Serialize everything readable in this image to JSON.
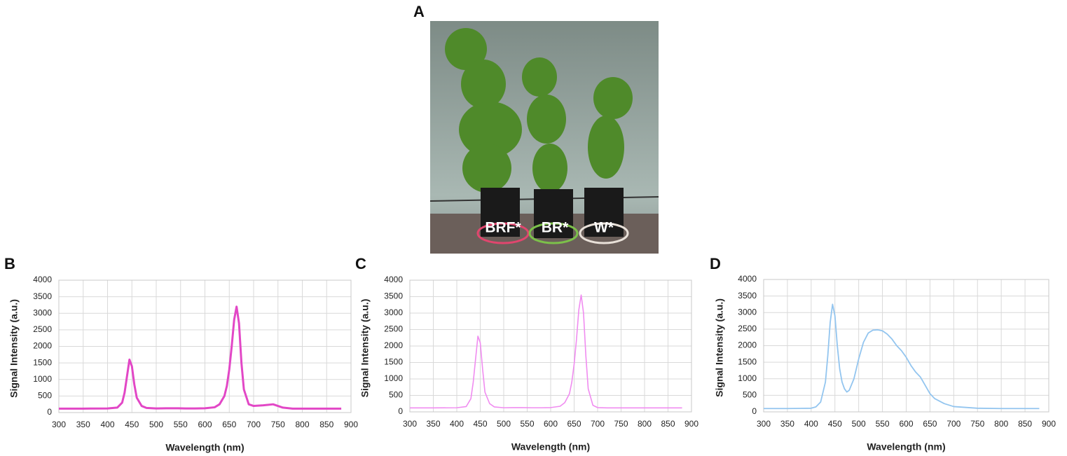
{
  "photo": {
    "label": "A",
    "tags": [
      "BRF*",
      "BR*",
      "W*"
    ]
  },
  "chart_data": [
    {
      "type": "line",
      "label": "B",
      "xlabel": "Wavelength (nm)",
      "ylabel": "Signal Intensity (a.u.)",
      "xlim": [
        300,
        900
      ],
      "xticks": [
        300,
        350,
        400,
        450,
        500,
        550,
        600,
        650,
        700,
        750,
        800,
        850,
        900
      ],
      "ylim": [
        0,
        4000
      ],
      "yticks": [
        0,
        500,
        1000,
        1500,
        2000,
        2500,
        3000,
        3500,
        4000
      ],
      "grid": true,
      "x": [
        300,
        350,
        400,
        420,
        430,
        435,
        440,
        445,
        450,
        455,
        460,
        470,
        480,
        500,
        520,
        540,
        560,
        580,
        600,
        620,
        630,
        640,
        645,
        650,
        655,
        660,
        665,
        670,
        675,
        680,
        690,
        700,
        720,
        740,
        760,
        780,
        800,
        850,
        880
      ],
      "series": [
        {
          "color": "#e247c6",
          "width": 3,
          "values": [
            120,
            120,
            125,
            150,
            300,
            600,
            1100,
            1600,
            1400,
            850,
            450,
            200,
            140,
            125,
            130,
            130,
            125,
            125,
            130,
            160,
            250,
            500,
            800,
            1300,
            2000,
            2800,
            3200,
            2700,
            1500,
            700,
            250,
            200,
            220,
            250,
            150,
            120,
            120,
            120,
            120
          ]
        }
      ]
    },
    {
      "type": "line",
      "label": "C",
      "xlabel": "Wavelength (nm)",
      "ylabel": "Signal Intensity (a.u.)",
      "xlim": [
        300,
        900
      ],
      "xticks": [
        300,
        350,
        400,
        450,
        500,
        550,
        600,
        650,
        700,
        750,
        800,
        850,
        900
      ],
      "ylim": [
        0,
        4000
      ],
      "yticks": [
        0,
        500,
        1000,
        1500,
        2000,
        2500,
        3000,
        3500,
        4000
      ],
      "grid": true,
      "x": [
        300,
        350,
        400,
        420,
        430,
        435,
        440,
        445,
        450,
        455,
        460,
        470,
        480,
        500,
        520,
        540,
        560,
        580,
        600,
        620,
        630,
        640,
        645,
        650,
        655,
        660,
        665,
        670,
        675,
        680,
        690,
        700,
        720,
        740,
        760,
        780,
        800,
        850,
        880
      ],
      "series": [
        {
          "color": "#f08cf0",
          "width": 1.6,
          "values": [
            120,
            120,
            125,
            160,
            400,
            900,
            1600,
            2300,
            2100,
            1300,
            600,
            250,
            150,
            125,
            130,
            130,
            125,
            125,
            130,
            170,
            280,
            550,
            900,
            1450,
            2200,
            3100,
            3550,
            3000,
            1700,
            700,
            200,
            130,
            120,
            120,
            120,
            120,
            120,
            120,
            120
          ]
        }
      ]
    },
    {
      "type": "line",
      "label": "D",
      "xlabel": "Wavelength (nm)",
      "ylabel": "Signal Intensity (a.u.)",
      "xlim": [
        300,
        900
      ],
      "xticks": [
        300,
        350,
        400,
        450,
        500,
        550,
        600,
        650,
        700,
        750,
        800,
        850,
        900
      ],
      "ylim": [
        0,
        4000
      ],
      "yticks": [
        0,
        500,
        1000,
        1500,
        2000,
        2500,
        3000,
        3500,
        4000
      ],
      "grid": true,
      "x": [
        300,
        350,
        400,
        410,
        420,
        430,
        435,
        440,
        445,
        450,
        455,
        460,
        465,
        470,
        475,
        480,
        490,
        500,
        510,
        520,
        530,
        540,
        550,
        560,
        570,
        580,
        590,
        600,
        610,
        620,
        630,
        640,
        650,
        660,
        680,
        700,
        750,
        800,
        850,
        880
      ],
      "series": [
        {
          "color": "#93c5ef",
          "width": 1.8,
          "values": [
            100,
            100,
            110,
            150,
            300,
            900,
            1700,
            2700,
            3250,
            2900,
            2000,
            1300,
            900,
            700,
            600,
            650,
            1000,
            1600,
            2100,
            2380,
            2470,
            2480,
            2450,
            2350,
            2200,
            2000,
            1850,
            1650,
            1400,
            1200,
            1050,
            800,
            550,
            400,
            250,
            160,
            110,
            100,
            100,
            100
          ]
        }
      ]
    }
  ]
}
